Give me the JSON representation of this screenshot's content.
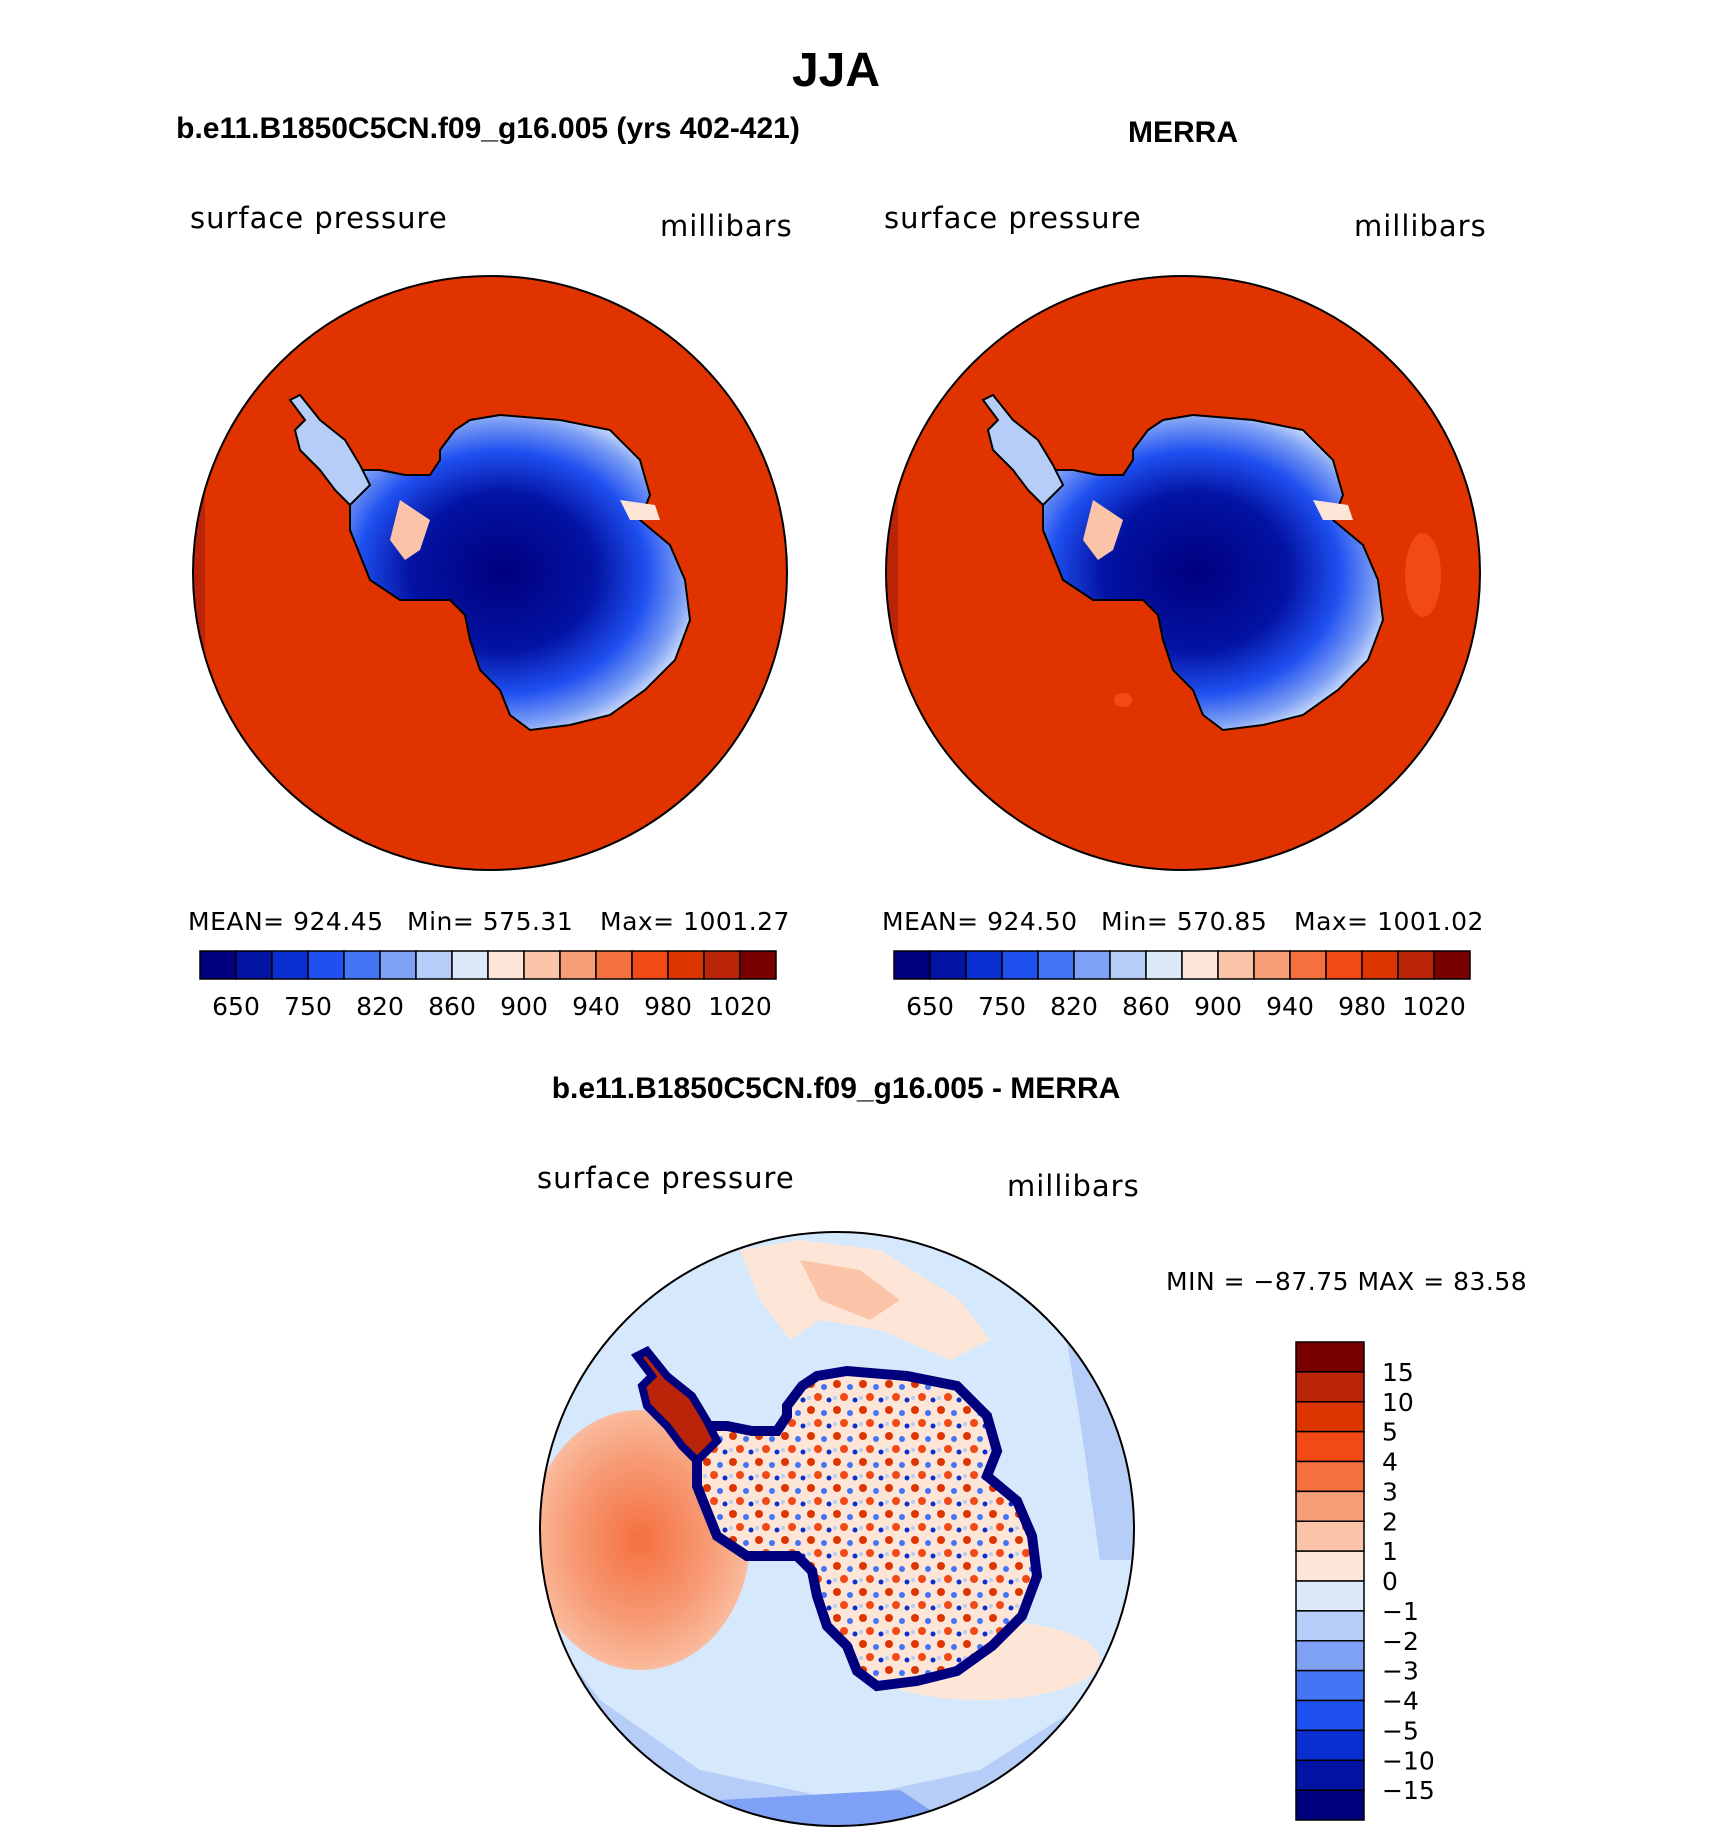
{
  "figure": {
    "season_title": "JJA",
    "colors": {
      "ocean_fill": "#e03300",
      "coast": "#000000",
      "diff_ocean": "#d6e8fb"
    }
  },
  "panels": [
    {
      "id": "model",
      "title": "b.e11.B1850C5CN.f09_g16.005 (yrs 402-421)",
      "left_label": "surface pressure",
      "right_label": "millibars",
      "stats": {
        "mean": "MEAN= 924.45",
        "min": "Min= 575.31",
        "max": "Max= 1001.27"
      }
    },
    {
      "id": "merra",
      "title": "MERRA",
      "left_label": "surface pressure",
      "right_label": "millibars",
      "stats": {
        "mean": "MEAN= 924.50",
        "min": "Min= 570.85",
        "max": "Max= 1001.02"
      }
    },
    {
      "id": "diff",
      "title": "b.e11.B1850C5CN.f09_g16.005 - MERRA",
      "left_label": "surface pressure",
      "right_label": "millibars",
      "stats": {
        "minmax": "MIN = −87.75 MAX =  83.58"
      }
    }
  ],
  "abs_colorbar": {
    "colors": [
      "#00007f",
      "#0313a3",
      "#0a2fd0",
      "#1f50f0",
      "#4475f5",
      "#7ea0f5",
      "#b6cdf7",
      "#dce9fb",
      "#fde6d8",
      "#fbc4a8",
      "#f79d78",
      "#f5703f",
      "#f24a16",
      "#dc3500",
      "#ba2408",
      "#7a0000"
    ],
    "tick_labels": [
      "650",
      "750",
      "820",
      "860",
      "900",
      "940",
      "980",
      "1020"
    ]
  },
  "diff_colorbar": {
    "colors": [
      "#7a0000",
      "#ba2408",
      "#dc3500",
      "#f24a16",
      "#f5703f",
      "#f79d78",
      "#fbc4a8",
      "#fde6d8",
      "#dce9fb",
      "#b6cdf7",
      "#7ea0f5",
      "#4475f5",
      "#1f50f0",
      "#0a2fd0",
      "#0313a3",
      "#00007f"
    ],
    "tick_labels": [
      "15",
      "10",
      "5",
      "4",
      "3",
      "2",
      "1",
      "0",
      "−1",
      "−2",
      "−3",
      "−4",
      "−5",
      "−10",
      "−15"
    ]
  }
}
